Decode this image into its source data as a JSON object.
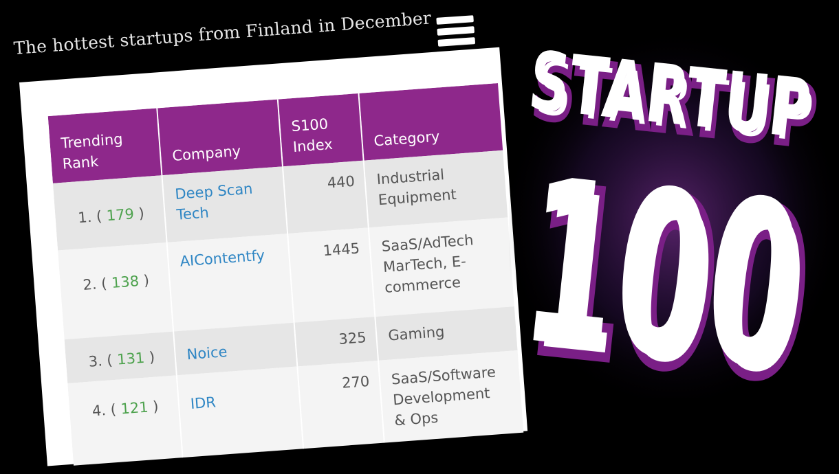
{
  "header": {
    "title": "The hottest startups from Finland in December"
  },
  "menu": {
    "icon": "hamburger-menu-icon"
  },
  "table": {
    "columns": [
      "Trending Rank",
      "Company",
      "S100 Index",
      "Category"
    ],
    "rows": [
      {
        "rank_prefix": "1. (",
        "rank_num": "179",
        "rank_suffix": " )",
        "company": "Deep Scan Tech",
        "index": "440",
        "category": "Industrial Equipment"
      },
      {
        "rank_prefix": "2. (",
        "rank_num": "138",
        "rank_suffix": " )",
        "company": "AIContentfy",
        "index": "1445",
        "category": "SaaS/AdTech MarTech, E-commerce"
      },
      {
        "rank_prefix": "3. (",
        "rank_num": "131",
        "rank_suffix": " )",
        "company": "Noice",
        "index": "325",
        "category": "Gaming"
      },
      {
        "rank_prefix": "4. (",
        "rank_num": "121",
        "rank_suffix": " )",
        "company": "IDR",
        "index": "270",
        "category": "SaaS/Software Development & Ops"
      }
    ]
  },
  "logo": {
    "line1": "STARTUP",
    "line2": "100"
  },
  "colors": {
    "accent": "#8e288b",
    "link": "#2f86c4",
    "rank_green": "#4ea24e",
    "background": "#000000"
  }
}
